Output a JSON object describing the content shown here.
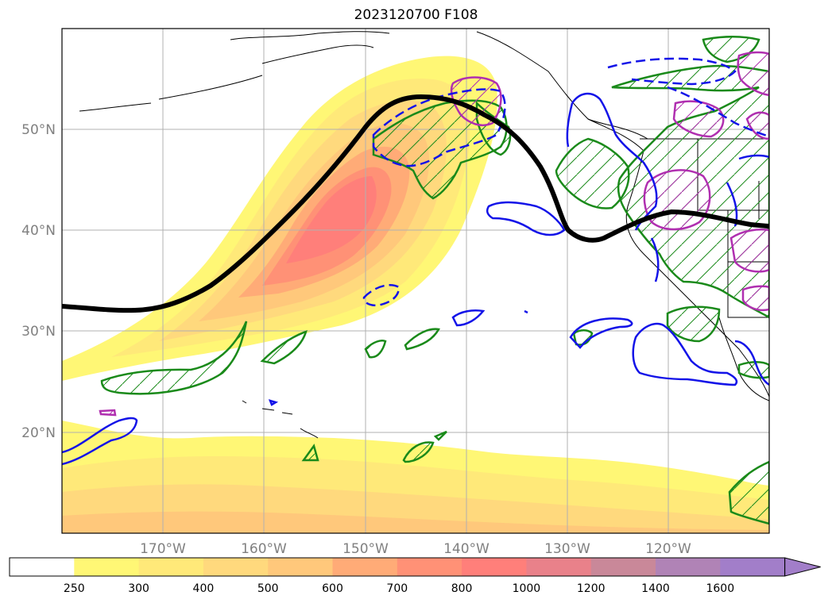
{
  "title": "2023120700 F108",
  "map": {
    "lon_labels": [
      "170°W",
      "160°W",
      "150°W",
      "140°W",
      "130°W",
      "120°W"
    ],
    "lat_labels": [
      "50°N",
      "40°N",
      "30°N",
      "20°N"
    ],
    "gridlines": true
  },
  "colorbar": {
    "levels": [
      "250",
      "300",
      "400",
      "500",
      "600",
      "700",
      "800",
      "1000",
      "1200",
      "1400",
      "1600"
    ],
    "colors": [
      "#ffffff",
      "#fff775",
      "#ffe979",
      "#ffd97d",
      "#ffc87b",
      "#ffab77",
      "#ff9176",
      "#ff7f7a",
      "#e9818a",
      "#c98899",
      "#b083b6",
      "#a27ec9"
    ],
    "extend": "max"
  },
  "contours": {
    "filled": "ivt-shading",
    "black": "thick-black",
    "blue": "blue-solid-dashed",
    "green": "green-hatched",
    "magenta": "magenta-hatched"
  }
}
